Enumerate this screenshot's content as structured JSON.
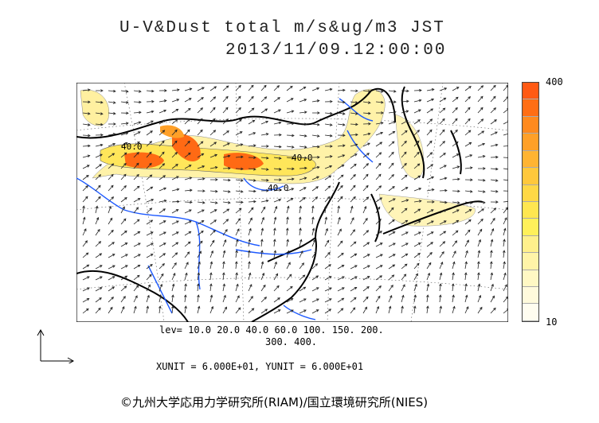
{
  "title_line1": "U-V&Dust total m/s&ug/m3 JST",
  "title_line2": "2013/11/09.12:00:00",
  "contour_labels": [
    "40.0",
    "40.0",
    "40.0"
  ],
  "legend": {
    "max_label": "400",
    "min_label": "10",
    "colors": [
      "#ff5a14",
      "#ff6e14",
      "#ff8a1e",
      "#ffa028",
      "#ffb432",
      "#ffc83c",
      "#ffd846",
      "#ffe650",
      "#fff05a",
      "#fff08c",
      "#fff4a8",
      "#fff8c4",
      "#fffadc",
      "#fffdf0"
    ]
  },
  "levels_line1": "lev= 10.0 20.0 40.0 60.0 100. 150. 200.",
  "levels_line2": "300. 400.",
  "units_line": "XUNIT = 6.000E+01, YUNIT = 6.000E+01",
  "copyright": "©九州大学応用力学研究所(RIAM)/国立環境研究所(NIES)"
}
